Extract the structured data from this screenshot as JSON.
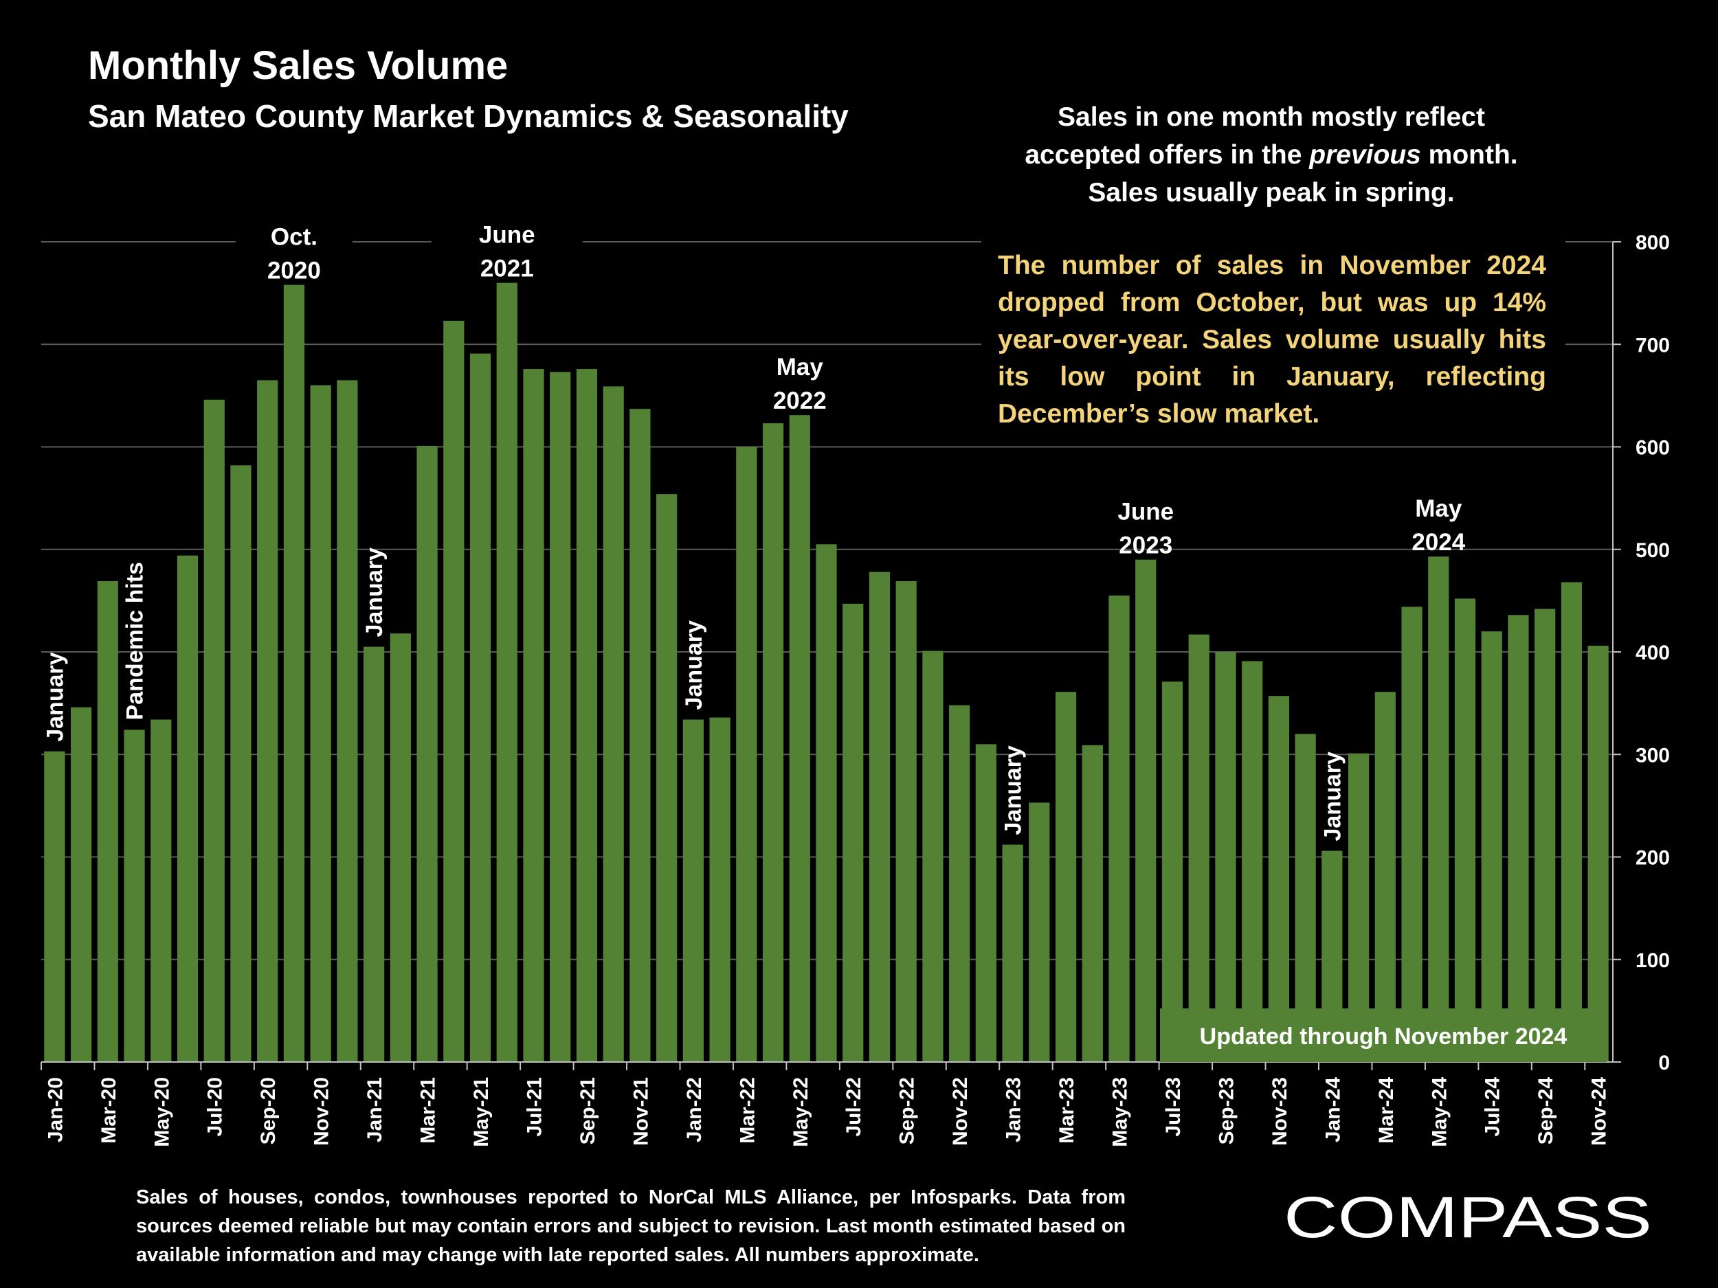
{
  "header": {
    "title": "Monthly Sales Volume",
    "subtitle": "San Mateo County Market Dynamics & Seasonality"
  },
  "note": {
    "line1": "Sales in one month mostly reflect",
    "line2_before": "accepted offers in the ",
    "line2_italic": "previous",
    "line2_after": " month.",
    "line3": "Sales usually peak in spring."
  },
  "callout": "The number of sales in November 2024 dropped from October, but was up 14% year-over-year. Sales volume usually hits its low point in January, reflecting December’s slow market.",
  "update_badge": "Updated through November 2024",
  "footnote": "Sales of houses, condos, townhouses reported to NorCal MLS Alliance, per Infosparks. Data from sources deemed reliable but may contain errors and subject to revision. Last month estimated based on available information and may change with late reported sales. All numbers approximate.",
  "logo": "COMPASS",
  "colors": {
    "bar": "#548235",
    "background": "#000000",
    "callout": "#f3d47a",
    "grid": "#5a5a5a"
  },
  "chart_data": {
    "type": "bar",
    "title": "Monthly Sales Volume",
    "ylim": [
      0,
      800
    ],
    "yticks": [
      0,
      100,
      200,
      300,
      400,
      500,
      600,
      700,
      800
    ],
    "y_axis_position": "right",
    "grid": true,
    "categories": [
      "Jan-20",
      "Feb-20",
      "Mar-20",
      "Apr-20",
      "May-20",
      "Jun-20",
      "Jul-20",
      "Aug-20",
      "Sep-20",
      "Oct-20",
      "Nov-20",
      "Dec-20",
      "Jan-21",
      "Feb-21",
      "Mar-21",
      "Apr-21",
      "May-21",
      "Jun-21",
      "Jul-21",
      "Aug-21",
      "Sep-21",
      "Oct-21",
      "Nov-21",
      "Dec-21",
      "Jan-22",
      "Feb-22",
      "Mar-22",
      "Apr-22",
      "May-22",
      "Jun-22",
      "Jul-22",
      "Aug-22",
      "Sep-22",
      "Oct-22",
      "Nov-22",
      "Dec-22",
      "Jan-23",
      "Feb-23",
      "Mar-23",
      "Apr-23",
      "May-23",
      "Jun-23",
      "Jul-23",
      "Aug-23",
      "Sep-23",
      "Oct-23",
      "Nov-23",
      "Dec-23",
      "Jan-24",
      "Feb-24",
      "Mar-24",
      "Apr-24",
      "May-24",
      "Jun-24",
      "Jul-24",
      "Aug-24",
      "Sep-24",
      "Oct-24",
      "Nov-24"
    ],
    "values": [
      303,
      346,
      469,
      324,
      334,
      494,
      646,
      582,
      665,
      758,
      660,
      665,
      405,
      418,
      601,
      723,
      691,
      760,
      676,
      673,
      676,
      659,
      637,
      554,
      334,
      336,
      600,
      623,
      631,
      505,
      447,
      478,
      469,
      401,
      348,
      310,
      212,
      253,
      361,
      309,
      455,
      490,
      371,
      417,
      400,
      391,
      357,
      320,
      206,
      301,
      361,
      444,
      493,
      452,
      420,
      436,
      442,
      468,
      406
    ],
    "xtick_labels": [
      "Jan-20",
      "Mar-20",
      "May-20",
      "Jul-20",
      "Sep-20",
      "Nov-20",
      "Jan-21",
      "Mar-21",
      "May-21",
      "Jul-21",
      "Sep-21",
      "Nov-21",
      "Jan-22",
      "Mar-22",
      "May-22",
      "Jul-22",
      "Sep-22",
      "Nov-22",
      "Jan-23",
      "Mar-23",
      "May-23",
      "Jul-23",
      "Sep-23",
      "Nov-23",
      "Jan-24",
      "Mar-24",
      "May-24",
      "Jul-24",
      "Sep-24",
      "Nov-24"
    ],
    "annotations": [
      {
        "text": "January",
        "index": 0,
        "rotated": true
      },
      {
        "text": "Pandemic hits",
        "index": 3,
        "rotated": true
      },
      {
        "text": [
          "Oct.",
          "2020"
        ],
        "index": 9,
        "rotated": false
      },
      {
        "text": "January",
        "index": 12,
        "rotated": true
      },
      {
        "text": [
          "June",
          "2021"
        ],
        "index": 17,
        "rotated": false
      },
      {
        "text": "January",
        "index": 24,
        "rotated": true
      },
      {
        "text": [
          "May",
          "2022"
        ],
        "index": 28,
        "rotated": false
      },
      {
        "text": "January",
        "index": 36,
        "rotated": true
      },
      {
        "text": [
          "June",
          "2023"
        ],
        "index": 41,
        "rotated": false
      },
      {
        "text": "January",
        "index": 48,
        "rotated": true
      },
      {
        "text": [
          "May",
          "2024"
        ],
        "index": 52,
        "rotated": false
      }
    ]
  }
}
